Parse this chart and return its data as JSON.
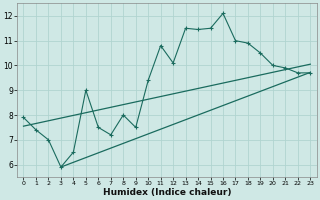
{
  "title": "",
  "xlabel": "Humidex (Indice chaleur)",
  "ylabel": "",
  "bg_color": "#cfe8e5",
  "grid_color": "#b0d4d0",
  "line_color": "#1a6b5e",
  "xlim": [
    -0.5,
    23.5
  ],
  "ylim": [
    5.5,
    12.5
  ],
  "x_ticks": [
    0,
    1,
    2,
    3,
    4,
    5,
    6,
    7,
    8,
    9,
    10,
    11,
    12,
    13,
    14,
    15,
    16,
    17,
    18,
    19,
    20,
    21,
    22,
    23
  ],
  "y_ticks": [
    6,
    7,
    8,
    9,
    10,
    11,
    12
  ],
  "data_x": [
    0,
    1,
    2,
    3,
    4,
    5,
    6,
    7,
    8,
    9,
    10,
    11,
    12,
    13,
    14,
    15,
    16,
    17,
    18,
    19,
    20,
    21,
    22,
    23
  ],
  "data_y": [
    7.9,
    7.4,
    7.0,
    5.9,
    6.5,
    9.0,
    7.5,
    7.2,
    8.0,
    7.5,
    9.4,
    10.8,
    10.1,
    11.5,
    11.45,
    11.5,
    12.1,
    11.0,
    10.9,
    10.5,
    10.0,
    9.9,
    9.7,
    9.7
  ],
  "regline1_x": [
    0,
    23
  ],
  "regline1_y": [
    7.55,
    10.05
  ],
  "regline2_x": [
    3,
    23
  ],
  "regline2_y": [
    5.9,
    9.72
  ]
}
